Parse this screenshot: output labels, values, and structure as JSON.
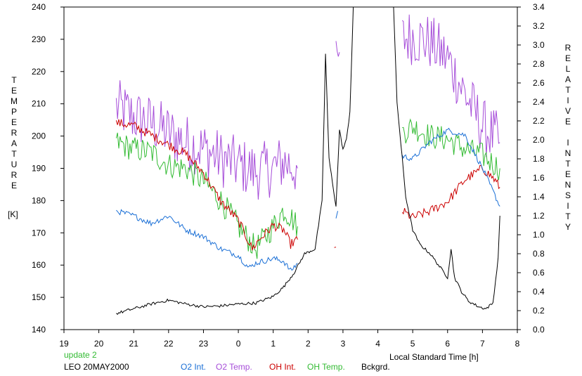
{
  "chart_data": {
    "type": "line",
    "left_axis": {
      "label_letters": [
        "T",
        "E",
        "M",
        "P",
        "E",
        "R",
        "A",
        "T",
        "U",
        "R",
        "E"
      ],
      "unit": "[K]",
      "ylim": [
        140,
        240
      ],
      "ticks": [
        140,
        150,
        160,
        170,
        180,
        190,
        200,
        210,
        220,
        230,
        240
      ]
    },
    "right_axis": {
      "label_letters": [
        "R",
        "E",
        "L",
        "A",
        "T",
        "I",
        "V",
        "E",
        "",
        "I",
        "N",
        "T",
        "E",
        "N",
        "S",
        "I",
        "T",
        "Y"
      ],
      "ylim": [
        0.0,
        3.4
      ],
      "ticks": [
        "0.0",
        "0.2",
        "0.4",
        "0.6",
        "0.8",
        "1.0",
        "1.2",
        "1.4",
        "1.6",
        "1.8",
        "2.0",
        "2.2",
        "2.4",
        "2.6",
        "2.8",
        "3.0",
        "3.2",
        "3.4"
      ]
    },
    "x_axis": {
      "label": "Local Standard Time [h]",
      "tick_labels": [
        "19",
        "20",
        "21",
        "22",
        "23",
        "0",
        "1",
        "2",
        "3",
        "4",
        "5",
        "6",
        "7",
        "8"
      ]
    },
    "update_text": "update 2",
    "station_text": "LEO 20MAY2000",
    "legend": [
      {
        "label": "O2 Int.",
        "color": "#1a6fd6"
      },
      {
        "label": "O2 Temp.",
        "color": "#a64dd9"
      },
      {
        "label": "OH Int.",
        "color": "#cc0000"
      },
      {
        "label": "OH Temp.",
        "color": "#33bb33"
      },
      {
        "label": "Bckgrd.",
        "color": "#000000"
      }
    ],
    "series": [
      {
        "name": "O2 Temp.",
        "axis": "left",
        "color": "#a64dd9",
        "noise": 9,
        "segments": [
          {
            "points": [
              [
                20.5,
                209
              ],
              [
                21,
                206
              ],
              [
                21.5,
                204
              ],
              [
                22,
                201
              ],
              [
                22.5,
                198
              ],
              [
                23,
                196
              ],
              [
                23.5,
                193
              ],
              [
                24,
                191
              ],
              [
                24.5,
                189
              ],
              [
                25,
                190
              ],
              [
                25.3,
                192
              ],
              [
                25.7,
                190
              ]
            ]
          },
          {
            "points": [
              [
                26.8,
                221
              ],
              [
                26.9,
                226
              ]
            ]
          },
          {
            "points": [
              [
                28.7,
                230
              ],
              [
                29,
                231
              ],
              [
                29.5,
                229
              ],
              [
                30,
                224
              ],
              [
                30.5,
                213
              ],
              [
                31,
                203
              ],
              [
                31.5,
                198
              ]
            ]
          }
        ]
      },
      {
        "name": "OH Temp.",
        "axis": "left",
        "color": "#33bb33",
        "noise": 4,
        "segments": [
          {
            "points": [
              [
                20.5,
                198
              ],
              [
                21,
                196
              ],
              [
                21.5,
                195
              ],
              [
                22,
                191
              ],
              [
                22.5,
                190
              ],
              [
                23,
                186
              ],
              [
                23.5,
                180
              ],
              [
                24,
                172
              ],
              [
                24.5,
                165
              ],
              [
                25,
                172
              ],
              [
                25.3,
                177
              ],
              [
                25.5,
                175
              ],
              [
                25.7,
                172
              ]
            ]
          },
          {
            "points": [
              [
                28.7,
                201
              ],
              [
                29,
                203
              ],
              [
                29.5,
                200
              ],
              [
                30,
                199
              ],
              [
                30.5,
                196
              ],
              [
                31,
                194
              ],
              [
                31.5,
                190
              ]
            ]
          }
        ]
      },
      {
        "name": "OH Int.",
        "axis": "right",
        "color": "#cc0000",
        "noise": 0.05,
        "segments": [
          {
            "points": [
              [
                20.5,
                2.18
              ],
              [
                21,
                2.15
              ],
              [
                21.5,
                2.05
              ],
              [
                22,
                1.95
              ],
              [
                22.5,
                1.85
              ],
              [
                23,
                1.65
              ],
              [
                23.5,
                1.35
              ],
              [
                24,
                1.15
              ],
              [
                24.4,
                0.85
              ],
              [
                24.6,
                0.95
              ],
              [
                25,
                1.1
              ],
              [
                25.3,
                1.05
              ],
              [
                25.5,
                0.9
              ],
              [
                25.7,
                0.95
              ]
            ]
          },
          {
            "points": [
              [
                26.75,
                0.85
              ],
              [
                26.8,
                0.87
              ]
            ]
          },
          {
            "points": [
              [
                28.7,
                1.25
              ],
              [
                29,
                1.18
              ],
              [
                29.5,
                1.25
              ],
              [
                30,
                1.35
              ],
              [
                30.5,
                1.58
              ],
              [
                31,
                1.7
              ],
              [
                31.3,
                1.6
              ],
              [
                31.5,
                1.5
              ]
            ]
          }
        ]
      },
      {
        "name": "O2 Int.",
        "axis": "right",
        "color": "#1a6fd6",
        "noise": 0.03,
        "segments": [
          {
            "points": [
              [
                20.5,
                1.25
              ],
              [
                21,
                1.2
              ],
              [
                21.5,
                1.12
              ],
              [
                22,
                1.2
              ],
              [
                22.5,
                1.05
              ],
              [
                23,
                0.98
              ],
              [
                23.5,
                0.85
              ],
              [
                24,
                0.78
              ],
              [
                24.3,
                0.65
              ],
              [
                24.5,
                0.7
              ],
              [
                25,
                0.75
              ],
              [
                25.3,
                0.72
              ],
              [
                25.5,
                0.62
              ],
              [
                25.7,
                0.7
              ]
            ]
          },
          {
            "points": [
              [
                26.8,
                1.18
              ],
              [
                26.85,
                1.25
              ]
            ]
          },
          {
            "points": [
              [
                28.7,
                1.83
              ],
              [
                29,
                1.8
              ],
              [
                29.5,
                1.98
              ],
              [
                30,
                2.1
              ],
              [
                30.5,
                2.05
              ],
              [
                31,
                1.7
              ],
              [
                31.5,
                1.3
              ]
            ]
          }
        ]
      },
      {
        "name": "Bckgrd.",
        "axis": "right",
        "color": "#000000",
        "noise": 0.015,
        "segments": [
          {
            "points": [
              [
                20.5,
                0.17
              ],
              [
                21,
                0.22
              ],
              [
                21.5,
                0.27
              ],
              [
                22,
                0.31
              ],
              [
                22.5,
                0.27
              ],
              [
                23,
                0.24
              ],
              [
                23.5,
                0.25
              ],
              [
                24,
                0.27
              ],
              [
                24.5,
                0.28
              ],
              [
                25,
                0.35
              ],
              [
                25.3,
                0.45
              ],
              [
                25.6,
                0.6
              ],
              [
                25.9,
                0.8
              ],
              [
                26.2,
                0.85
              ],
              [
                26.4,
                1.35
              ],
              [
                26.5,
                2.9
              ],
              [
                26.6,
                1.8
              ],
              [
                26.8,
                1.3
              ],
              [
                26.9,
                2.1
              ],
              [
                27.0,
                1.9
              ],
              [
                27.1,
                2.0
              ],
              [
                27.2,
                2.3
              ],
              [
                27.3,
                3.45
              ]
            ]
          },
          {
            "points": [
              [
                28.45,
                3.4
              ],
              [
                28.55,
                2.4
              ],
              [
                28.7,
                1.8
              ],
              [
                28.8,
                1.4
              ],
              [
                29,
                1.05
              ],
              [
                29.2,
                0.9
              ],
              [
                29.5,
                0.8
              ],
              [
                29.8,
                0.65
              ],
              [
                30.0,
                0.55
              ],
              [
                30.1,
                0.85
              ],
              [
                30.2,
                0.55
              ],
              [
                30.4,
                0.4
              ],
              [
                30.6,
                0.3
              ],
              [
                30.9,
                0.24
              ],
              [
                31.1,
                0.22
              ],
              [
                31.3,
                0.28
              ],
              [
                31.45,
                0.75
              ],
              [
                31.5,
                1.2
              ]
            ]
          }
        ]
      }
    ]
  }
}
